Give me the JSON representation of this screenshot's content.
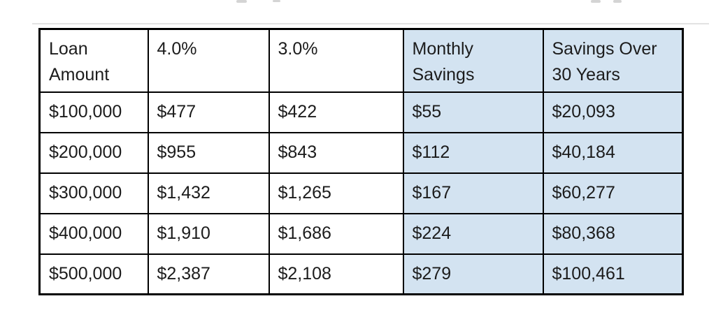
{
  "page": {
    "background": "#ffffff"
  },
  "colors": {
    "highlight_fill": "#d3e3f1",
    "border": "#000000",
    "text": "#1c1c1c"
  },
  "table": {
    "title_semantic": "mortgage-refinance-savings-table",
    "columns": [
      {
        "key": "loan_amount",
        "label": "Loan Amount",
        "highlighted": false
      },
      {
        "key": "rate_4_0",
        "label": "4.0%",
        "highlighted": false
      },
      {
        "key": "rate_3_0",
        "label": "3.0%",
        "highlighted": false
      },
      {
        "key": "monthly_savings",
        "label": "Monthly Savings",
        "highlighted": true
      },
      {
        "key": "savings_over_30_years",
        "label": "Savings Over 30 Years",
        "highlighted": true
      }
    ],
    "rows": [
      [
        "$100,000",
        "$477",
        "$422",
        "$55",
        "$20,093"
      ],
      [
        "$200,000",
        "$955",
        "$843",
        "$112",
        "$40,184"
      ],
      [
        "$300,000",
        "$1,432",
        "$1,265",
        "$167",
        "$60,277"
      ],
      [
        "$400,000",
        "$1,910",
        "$1,686",
        "$224",
        "$80,368"
      ],
      [
        "$500,000",
        "$2,387",
        "$2,108",
        "$279",
        "$100,461"
      ]
    ]
  }
}
